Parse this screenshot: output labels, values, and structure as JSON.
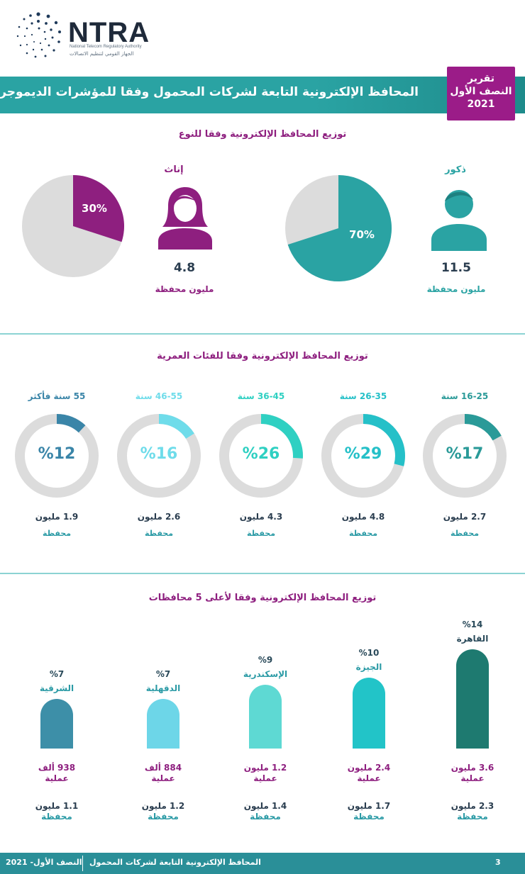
{
  "logo": {
    "name": "NTRA",
    "subtitle_en": "National Telecom Regulatory Authority",
    "subtitle_ar": "الجهاز القومي لتنظيم الاتصالات"
  },
  "banner": {
    "title": "المحافظ الإلكترونية التابعة لشركات المحمول وفقا للمؤشرات الديموجرافية",
    "report_line1": "تقرير",
    "report_line2": "النصف الأول",
    "report_line3": "2021"
  },
  "colors": {
    "teal": "#2aa3a3",
    "purple": "#8e1f7f",
    "grey": "#dcdcdc",
    "age_17": "#2a9a98",
    "age_29": "#25c0c8",
    "age_26": "#2fd0c2",
    "age_16": "#6fdcea",
    "age_12": "#3a85a8"
  },
  "gender": {
    "title": "توزيع المحافظ الإلكترونية وفقا للنوع",
    "male": {
      "label": "ذكور",
      "value": "11.5",
      "unit": "مليون محفظة",
      "pct_label": "70%",
      "pct": 70
    },
    "female": {
      "label": "إناث",
      "value": "4.8",
      "unit": "مليون محفظة",
      "pct_label": "30%",
      "pct": 30
    }
  },
  "age": {
    "title": "توزيع المحافظ الإلكترونية وفقا للفئات العمرية",
    "groups": [
      {
        "label": "16-25 سنة",
        "pct": 17,
        "pct_label": "%17",
        "millions": "2.7 مليون",
        "unit": "محفظة",
        "color": "#2a9a98"
      },
      {
        "label": "26-35 سنة",
        "pct": 29,
        "pct_label": "%29",
        "millions": "4.8 مليون",
        "unit": "محفظة",
        "color": "#25c0c8"
      },
      {
        "label": "36-45 سنة",
        "pct": 26,
        "pct_label": "%26",
        "millions": "4.3 مليون",
        "unit": "محفظة",
        "color": "#2fd0c2"
      },
      {
        "label": "46-55 سنة",
        "pct": 16,
        "pct_label": "%16",
        "millions": "2.6 مليون",
        "unit": "محفظة",
        "color": "#6fdcea"
      },
      {
        "label": "55 سنة فأكثر",
        "pct": 12,
        "pct_label": "%12",
        "millions": "1.9 مليون",
        "unit": "محفظة",
        "color": "#3a85a8"
      }
    ]
  },
  "governorates": {
    "title": "توزيع المحافظ الإلكترونية وفقا لأعلى 5 محافظات",
    "items": [
      {
        "name": "القاهرة",
        "pct": 14,
        "pct_label": "%14",
        "ops": "3.6 مليون",
        "ops_unit": "عملية",
        "wallets": "2.3 مليون",
        "wallets_unit": "محفظة",
        "color": "#1e7a70",
        "name_color": "#2a4a5a"
      },
      {
        "name": "الجيزة",
        "pct": 10,
        "pct_label": "%10",
        "ops": "2.4 مليون",
        "ops_unit": "عملية",
        "wallets": "1.7 مليون",
        "wallets_unit": "محفظة",
        "color": "#22c4c8",
        "name_color": "#2a9aa5"
      },
      {
        "name": "الإسكندرية",
        "pct": 9,
        "pct_label": "%9",
        "ops": "1.2 مليون",
        "ops_unit": "عملية",
        "wallets": "1.4 مليون",
        "wallets_unit": "محفظة",
        "color": "#5ed9d3",
        "name_color": "#2a9aa5"
      },
      {
        "name": "الدقهلية",
        "pct": 7,
        "pct_label": "%7",
        "ops": "884 ألف",
        "ops_unit": "عملية",
        "wallets": "1.2 مليون",
        "wallets_unit": "محفظة",
        "color": "#6dd6e8",
        "name_color": "#2a9aa5"
      },
      {
        "name": "الشرقية",
        "pct": 7,
        "pct_label": "%7",
        "ops": "938 ألف",
        "ops_unit": "عملية",
        "wallets": "1.1 مليون",
        "wallets_unit": "محفظة",
        "color": "#3d8fa8",
        "name_color": "#2a9aa5"
      }
    ]
  },
  "chart_data": [
    {
      "type": "pie",
      "title": "توزيع المحافظ الإلكترونية وفقا للنوع",
      "categories": [
        "ذكور",
        "إناث"
      ],
      "values": [
        70,
        30
      ]
    },
    {
      "type": "pie",
      "title": "توزيع المحافظ الإلكترونية وفقا للفئات العمرية",
      "categories": [
        "16-25 سنة",
        "26-35 سنة",
        "36-45 سنة",
        "46-55 سنة",
        "55 سنة فأكثر"
      ],
      "values": [
        17,
        29,
        26,
        16,
        12
      ]
    },
    {
      "type": "bar",
      "title": "توزيع المحافظ الإلكترونية وفقا لأعلى 5 محافظات",
      "categories": [
        "القاهرة",
        "الجيزة",
        "الإسكندرية",
        "الدقهلية",
        "الشرقية"
      ],
      "values": [
        14,
        10,
        9,
        7,
        7
      ]
    }
  ],
  "footer": {
    "left": "النصف الأول- 2021",
    "middle": "المحافظ الإلكترونية التابعة لشركات المحمول",
    "page": "3"
  }
}
